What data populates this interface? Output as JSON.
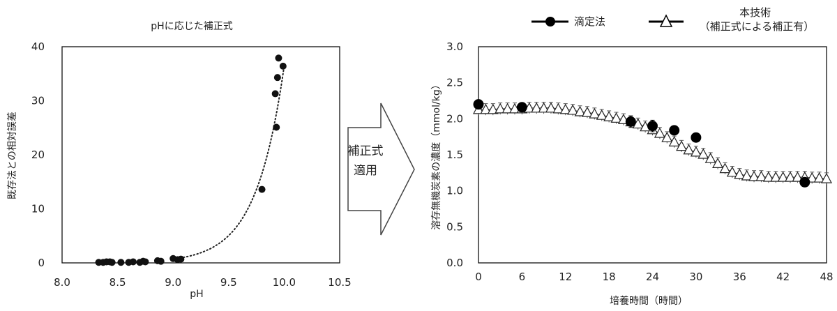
{
  "chart_data": [
    {
      "type": "scatter",
      "title": "pHに応じた補正式",
      "xlabel": "pH",
      "ylabel": "既存法との相対誤差",
      "xlim": [
        8.0,
        10.5
      ],
      "ylim": [
        0,
        40
      ],
      "xticks": [
        8.0,
        8.5,
        9.0,
        9.5,
        10.0,
        10.5
      ],
      "xtick_labels": [
        "8.0",
        "8.5",
        "9.0",
        "9.5",
        "10.0",
        "10.5"
      ],
      "yticks": [
        0,
        10,
        20,
        30,
        40
      ],
      "ytick_labels": [
        "0",
        "10",
        "20",
        "30",
        "40"
      ],
      "grid": false,
      "points": [
        {
          "x": 8.33,
          "y": 0.1
        },
        {
          "x": 8.37,
          "y": 0.1
        },
        {
          "x": 8.4,
          "y": 0.2
        },
        {
          "x": 8.43,
          "y": 0.2
        },
        {
          "x": 8.45,
          "y": 0.1
        },
        {
          "x": 8.53,
          "y": 0.1
        },
        {
          "x": 8.6,
          "y": 0.1
        },
        {
          "x": 8.64,
          "y": 0.2
        },
        {
          "x": 8.7,
          "y": 0.1
        },
        {
          "x": 8.73,
          "y": 0.3
        },
        {
          "x": 8.75,
          "y": 0.2
        },
        {
          "x": 8.86,
          "y": 0.4
        },
        {
          "x": 8.89,
          "y": 0.3
        },
        {
          "x": 9.0,
          "y": 0.8
        },
        {
          "x": 9.04,
          "y": 0.6
        },
        {
          "x": 9.07,
          "y": 0.7
        },
        {
          "x": 9.8,
          "y": 13.6
        },
        {
          "x": 9.93,
          "y": 25.1
        },
        {
          "x": 9.92,
          "y": 31.3
        },
        {
          "x": 9.94,
          "y": 34.3
        },
        {
          "x": 9.95,
          "y": 37.9
        },
        {
          "x": 9.99,
          "y": 36.4
        }
      ],
      "fit": {
        "style": "dotted",
        "type": "exponential",
        "x_range": [
          9.0,
          10.0
        ]
      }
    },
    {
      "type": "line",
      "xlabel": "培養時間（時間）",
      "ylabel": "溶存無機炭素の濃度（mmol/kg）",
      "xlim": [
        0,
        48
      ],
      "ylim": [
        0.0,
        3.0
      ],
      "xticks": [
        0,
        6,
        12,
        18,
        24,
        30,
        36,
        42,
        48
      ],
      "xtick_labels": [
        "0",
        "6",
        "12",
        "18",
        "24",
        "30",
        "36",
        "42",
        "48"
      ],
      "yticks": [
        0.0,
        0.5,
        1.0,
        1.5,
        2.0,
        2.5,
        3.0
      ],
      "ytick_labels": [
        "0.0",
        "0.5",
        "1.0",
        "1.5",
        "2.0",
        "2.5",
        "3.0"
      ],
      "grid": false,
      "legend_position": "top",
      "series": [
        {
          "name": "滴定法",
          "marker": "filled-circle",
          "x": [
            0,
            6,
            21,
            24,
            27,
            30,
            45
          ],
          "y": [
            2.2,
            2.16,
            1.96,
            1.9,
            1.84,
            1.74,
            1.12
          ],
          "err": [
            0.05,
            0.05,
            0.08,
            0.08,
            0.06,
            0.05,
            0.04
          ]
        },
        {
          "name": "本技術\n（補正式による補正有）",
          "marker": "open-triangle",
          "x": [
            0,
            1,
            2,
            3,
            4,
            5,
            6,
            7,
            8,
            9,
            10,
            11,
            12,
            13,
            14,
            15,
            16,
            17,
            18,
            19,
            20,
            21,
            22,
            23,
            24,
            25,
            26,
            27,
            28,
            29,
            30,
            31,
            32,
            33,
            34,
            35,
            36,
            37,
            38,
            39,
            40,
            41,
            42,
            43,
            44,
            45,
            46,
            47,
            48
          ],
          "y": [
            2.13,
            2.13,
            2.13,
            2.14,
            2.14,
            2.14,
            2.14,
            2.15,
            2.15,
            2.15,
            2.15,
            2.14,
            2.13,
            2.12,
            2.1,
            2.09,
            2.07,
            2.05,
            2.03,
            2.01,
            1.99,
            1.96,
            1.93,
            1.89,
            1.85,
            1.8,
            1.74,
            1.68,
            1.62,
            1.57,
            1.54,
            1.51,
            1.45,
            1.38,
            1.31,
            1.26,
            1.23,
            1.21,
            1.2,
            1.2,
            1.19,
            1.19,
            1.19,
            1.19,
            1.19,
            1.19,
            1.18,
            1.18,
            1.17
          ],
          "err": 0.08
        }
      ]
    }
  ],
  "arrow": {
    "label_line1": "補正式",
    "label_line2": "適用"
  }
}
